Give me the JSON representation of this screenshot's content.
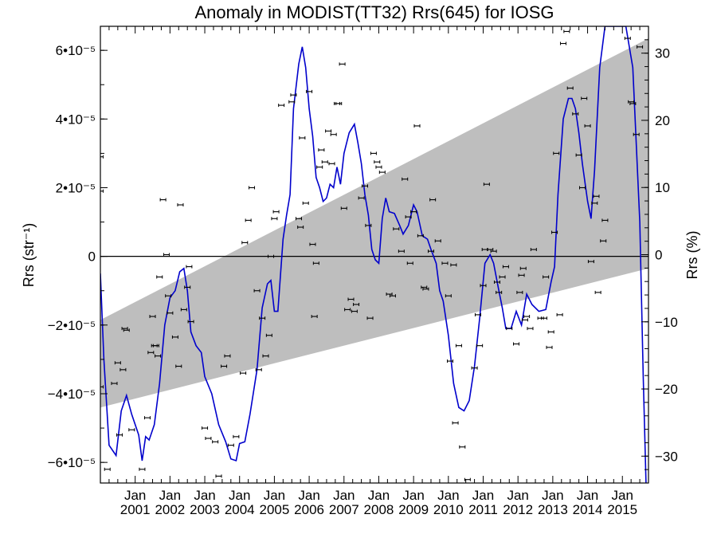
{
  "chart_data": {
    "type": "line",
    "title": "Anomaly in MODIST(TT32) Rrs(645) for IOSG",
    "ylabel_left": "Rrs (str⁻¹)",
    "ylabel_right": "Rrs (%)",
    "xlim": [
      2000.0,
      2015.75
    ],
    "ylim": [
      -6.6e-05,
      6.7e-05
    ],
    "ylim_right": [
      -34,
      34
    ],
    "zero_line": true,
    "y_ticks": [
      {
        "value": -6e-05,
        "label": "−6•10⁻⁵"
      },
      {
        "value": -4e-05,
        "label": "−4•10⁻⁵"
      },
      {
        "value": -2e-05,
        "label": "−2•10⁻⁵"
      },
      {
        "value": 0,
        "label": "0"
      },
      {
        "value": 2e-05,
        "label": "2•10⁻⁵"
      },
      {
        "value": 4e-05,
        "label": "4•10⁻⁵"
      },
      {
        "value": 6e-05,
        "label": "6•10⁻⁵"
      }
    ],
    "y_ticks_right": [
      {
        "value": -30,
        "label": "−30"
      },
      {
        "value": -20,
        "label": "−20"
      },
      {
        "value": -10,
        "label": "−10"
      },
      {
        "value": 0,
        "label": "0"
      },
      {
        "value": 10,
        "label": "10"
      },
      {
        "value": 20,
        "label": "20"
      },
      {
        "value": 30,
        "label": "30"
      }
    ],
    "x_ticks": [
      {
        "value": 2001,
        "month": "Jan",
        "year": "2001"
      },
      {
        "value": 2002,
        "month": "Jan",
        "year": "2002"
      },
      {
        "value": 2003,
        "month": "Jan",
        "year": "2003"
      },
      {
        "value": 2004,
        "month": "Jan",
        "year": "2004"
      },
      {
        "value": 2005,
        "month": "Jan",
        "year": "2005"
      },
      {
        "value": 2006,
        "month": "Jan",
        "year": "2006"
      },
      {
        "value": 2007,
        "month": "Jan",
        "year": "2007"
      },
      {
        "value": 2008,
        "month": "Jan",
        "year": "2008"
      },
      {
        "value": 2009,
        "month": "Jan",
        "year": "2009"
      },
      {
        "value": 2010,
        "month": "Jan",
        "year": "2010"
      },
      {
        "value": 2011,
        "month": "Jan",
        "year": "2011"
      },
      {
        "value": 2012,
        "month": "Jan",
        "year": "2012"
      },
      {
        "value": 2013,
        "month": "Jan",
        "year": "2013"
      },
      {
        "value": 2014,
        "month": "Jan",
        "year": "2014"
      },
      {
        "value": 2015,
        "month": "Jan",
        "year": "2015"
      }
    ],
    "band": {
      "color": "#bebebe",
      "lower": [
        [
          2000.0,
          -4.4e-05
        ],
        [
          2015.75,
          -3.5e-06
        ]
      ],
      "upper": [
        [
          2000.0,
          -1.85e-05
        ],
        [
          2015.75,
          6.35e-05
        ]
      ]
    },
    "series": [
      {
        "color": "#0000cc",
        "values": [
          [
            2000.0,
            -5e-06
          ],
          [
            2000.1,
            -3e-05
          ],
          [
            2000.25,
            -5.5e-05
          ],
          [
            2000.45,
            -5.8e-05
          ],
          [
            2000.6,
            -4.5e-05
          ],
          [
            2000.75,
            -4.05e-05
          ],
          [
            2000.9,
            -4.6e-05
          ],
          [
            2001.1,
            -5.2e-05
          ],
          [
            2001.2,
            -5.95e-05
          ],
          [
            2001.3,
            -5.25e-05
          ],
          [
            2001.4,
            -5.35e-05
          ],
          [
            2001.55,
            -4.9e-05
          ],
          [
            2001.7,
            -3.7e-05
          ],
          [
            2001.85,
            -2e-05
          ],
          [
            2002.0,
            -1.2e-05
          ],
          [
            2002.15,
            -1e-05
          ],
          [
            2002.28,
            -4.5e-06
          ],
          [
            2002.4,
            -3.5e-06
          ],
          [
            2002.5,
            -1e-05
          ],
          [
            2002.6,
            -2.2e-05
          ],
          [
            2002.75,
            -2.6e-05
          ],
          [
            2002.9,
            -2.8e-05
          ],
          [
            2003.0,
            -3.5e-05
          ],
          [
            2003.2,
            -4e-05
          ],
          [
            2003.4,
            -4.9e-05
          ],
          [
            2003.6,
            -5.4e-05
          ],
          [
            2003.75,
            -5.9e-05
          ],
          [
            2003.9,
            -5.95e-05
          ],
          [
            2004.0,
            -5.45e-05
          ],
          [
            2004.15,
            -5.4e-05
          ],
          [
            2004.3,
            -4.6e-05
          ],
          [
            2004.5,
            -3.3e-05
          ],
          [
            2004.65,
            -1.5e-05
          ],
          [
            2004.8,
            -8e-06
          ],
          [
            2004.9,
            -7e-06
          ],
          [
            2005.0,
            -1.6e-05
          ],
          [
            2005.1,
            -1.6e-05
          ],
          [
            2005.25,
            5e-06
          ],
          [
            2005.35,
            1.2e-05
          ],
          [
            2005.45,
            1.8e-05
          ],
          [
            2005.55,
            4.3e-05
          ],
          [
            2005.7,
            5.6e-05
          ],
          [
            2005.8,
            6.1e-05
          ],
          [
            2005.9,
            5.5e-05
          ],
          [
            2006.0,
            4.3e-05
          ],
          [
            2006.1,
            3.5e-05
          ],
          [
            2006.2,
            2.3e-05
          ],
          [
            2006.3,
            2e-05
          ],
          [
            2006.4,
            1.6e-05
          ],
          [
            2006.5,
            1.7e-05
          ],
          [
            2006.6,
            2.1e-05
          ],
          [
            2006.7,
            2e-05
          ],
          [
            2006.8,
            2.6e-05
          ],
          [
            2006.9,
            2.1e-05
          ],
          [
            2007.0,
            3e-05
          ],
          [
            2007.15,
            3.6e-05
          ],
          [
            2007.3,
            3.85e-05
          ],
          [
            2007.4,
            3.3e-05
          ],
          [
            2007.5,
            2.7e-05
          ],
          [
            2007.6,
            1.8e-05
          ],
          [
            2007.7,
            1.2e-05
          ],
          [
            2007.8,
            2e-06
          ],
          [
            2007.9,
            -1e-06
          ],
          [
            2008.0,
            -2e-06
          ],
          [
            2008.1,
            1.1e-05
          ],
          [
            2008.2,
            1.7e-05
          ],
          [
            2008.3,
            1.3e-05
          ],
          [
            2008.45,
            1.25e-05
          ],
          [
            2008.6,
            9e-06
          ],
          [
            2008.7,
            6.5e-06
          ],
          [
            2008.85,
            9e-06
          ],
          [
            2009.0,
            1.5e-05
          ],
          [
            2009.1,
            1.3e-05
          ],
          [
            2009.25,
            6e-06
          ],
          [
            2009.4,
            5e-06
          ],
          [
            2009.5,
            2e-06
          ],
          [
            2009.65,
            -2e-06
          ],
          [
            2009.75,
            -1e-05
          ],
          [
            2009.85,
            -1.3e-05
          ],
          [
            2010.0,
            -2.3e-05
          ],
          [
            2010.15,
            -3.7e-05
          ],
          [
            2010.3,
            -4.4e-05
          ],
          [
            2010.45,
            -4.5e-05
          ],
          [
            2010.6,
            -4.2e-05
          ],
          [
            2010.75,
            -3.2e-05
          ],
          [
            2010.9,
            -1.8e-05
          ],
          [
            2011.05,
            -2e-06
          ],
          [
            2011.2,
            5e-07
          ],
          [
            2011.3,
            -2e-06
          ],
          [
            2011.45,
            -1e-05
          ],
          [
            2011.55,
            -1.5e-05
          ],
          [
            2011.65,
            -2.1e-05
          ],
          [
            2011.8,
            -2.1e-05
          ],
          [
            2011.95,
            -1.6e-05
          ],
          [
            2012.1,
            -2e-05
          ],
          [
            2012.25,
            -1.1e-05
          ],
          [
            2012.4,
            -1.4e-05
          ],
          [
            2012.6,
            -1.6e-05
          ],
          [
            2012.8,
            -1.55e-05
          ],
          [
            2012.95,
            -7.5e-06
          ],
          [
            2013.05,
            -3e-06
          ],
          [
            2013.15,
            1.8e-05
          ],
          [
            2013.3,
            4e-05
          ],
          [
            2013.45,
            4.6e-05
          ],
          [
            2013.55,
            4.6e-05
          ],
          [
            2013.65,
            4.3e-05
          ],
          [
            2013.75,
            3.6e-05
          ],
          [
            2013.85,
            2.7e-05
          ],
          [
            2014.0,
            1.6e-05
          ],
          [
            2014.1,
            1.1e-05
          ],
          [
            2014.2,
            2.5e-05
          ],
          [
            2014.35,
            5.5e-05
          ],
          [
            2014.5,
            6.7e-05
          ],
          [
            2015.1,
            6.7e-05
          ],
          [
            2015.3,
            5.5e-05
          ],
          [
            2015.5,
            1e-05
          ],
          [
            2015.6,
            -3.5e-05
          ],
          [
            2015.68,
            -6.6e-05
          ]
        ]
      }
    ],
    "points": [
      [
        2000.0,
        2.9e-05
      ],
      [
        2000.0,
        1.9e-05
      ],
      [
        2000.0,
        -3.8e-05
      ],
      [
        2000.2,
        -6.2e-05
      ],
      [
        2000.4,
        -3.7e-05
      ],
      [
        2000.5,
        -3.1e-05
      ],
      [
        2000.55,
        -5.2e-05
      ],
      [
        2000.65,
        -3.3e-05
      ],
      [
        2000.7,
        -2.1e-05
      ],
      [
        2000.75,
        -2.15e-05
      ],
      [
        2000.9,
        -5.05e-05
      ],
      [
        2001.2,
        -6.2e-05
      ],
      [
        2001.35,
        -4.7e-05
      ],
      [
        2001.45,
        -2.8e-05
      ],
      [
        2001.5,
        -1.75e-05
      ],
      [
        2001.55,
        -2.6e-05
      ],
      [
        2001.6,
        -2.6e-05
      ],
      [
        2001.65,
        -2.9e-05
      ],
      [
        2001.7,
        -6e-06
      ],
      [
        2001.8,
        1.65e-05
      ],
      [
        2001.9,
        5e-07
      ],
      [
        2001.95,
        -1.15e-05
      ],
      [
        2002.0,
        -1.65e-05
      ],
      [
        2002.15,
        -2.35e-05
      ],
      [
        2002.25,
        -3.2e-05
      ],
      [
        2002.3,
        1.5e-05
      ],
      [
        2002.4,
        -1.55e-05
      ],
      [
        2002.5,
        -9e-06
      ],
      [
        2002.55,
        -3e-06
      ],
      [
        2002.6,
        -1.9e-05
      ],
      [
        2003.0,
        -5e-05
      ],
      [
        2003.1,
        -5.3e-05
      ],
      [
        2003.3,
        -5.4e-05
      ],
      [
        2003.4,
        -6.4e-05
      ],
      [
        2003.55,
        -3.2e-05
      ],
      [
        2003.65,
        -2.9e-05
      ],
      [
        2003.75,
        -5.5e-05
      ],
      [
        2003.9,
        -5.25e-05
      ],
      [
        2004.1,
        -3.4e-05
      ],
      [
        2004.15,
        4e-06
      ],
      [
        2004.25,
        1.05e-05
      ],
      [
        2004.35,
        2e-05
      ],
      [
        2004.5,
        -1e-05
      ],
      [
        2004.55,
        -3.3e-05
      ],
      [
        2004.65,
        -1.8e-05
      ],
      [
        2004.75,
        -2.9e-05
      ],
      [
        2004.85,
        -2.3e-05
      ],
      [
        2004.9,
        0.0
      ],
      [
        2005.0,
        1.1e-05
      ],
      [
        2005.05,
        1.3e-05
      ],
      [
        2005.2,
        4.4e-05
      ],
      [
        2005.5,
        4.5e-05
      ],
      [
        2005.55,
        4.7e-05
      ],
      [
        2005.7,
        1.1e-05
      ],
      [
        2005.75,
        8.5e-06
      ],
      [
        2005.8,
        3.45e-05
      ],
      [
        2005.9,
        1.55e-05
      ],
      [
        2006.0,
        4.8e-05
      ],
      [
        2006.1,
        3.5e-06
      ],
      [
        2006.15,
        -1.75e-05
      ],
      [
        2006.2,
        -2e-06
      ],
      [
        2006.3,
        2.6e-05
      ],
      [
        2006.35,
        3.1e-05
      ],
      [
        2006.45,
        2.75e-05
      ],
      [
        2006.55,
        3.65e-05
      ],
      [
        2006.65,
        2.7e-05
      ],
      [
        2006.7,
        3.55e-05
      ],
      [
        2006.8,
        4.45e-05
      ],
      [
        2006.85,
        4.45e-05
      ],
      [
        2006.95,
        5.6e-05
      ],
      [
        2007.0,
        1.4e-05
      ],
      [
        2007.1,
        -1.55e-05
      ],
      [
        2007.2,
        -1.25e-05
      ],
      [
        2007.3,
        -1.6e-05
      ],
      [
        2007.35,
        -1.4e-05
      ],
      [
        2007.5,
        1.7e-05
      ],
      [
        2007.6,
        2.05e-05
      ],
      [
        2007.7,
        9e-06
      ],
      [
        2007.75,
        -1.8e-05
      ],
      [
        2007.85,
        3e-05
      ],
      [
        2007.95,
        2.75e-05
      ],
      [
        2008.0,
        2.6e-05
      ],
      [
        2008.1,
        2.45e-05
      ],
      [
        2008.3,
        -1.1e-05
      ],
      [
        2008.4,
        -1.15e-05
      ],
      [
        2008.5,
        8e-06
      ],
      [
        2008.65,
        1.5e-06
      ],
      [
        2008.75,
        2.25e-05
      ],
      [
        2008.85,
        1.15e-05
      ],
      [
        2008.9,
        -2e-06
      ],
      [
        2009.0,
        1.3e-05
      ],
      [
        2009.1,
        3.8e-05
      ],
      [
        2009.2,
        6e-06
      ],
      [
        2009.3,
        -9e-06
      ],
      [
        2009.35,
        -9.5e-06
      ],
      [
        2009.5,
        1.5e-06
      ],
      [
        2009.55,
        1.65e-05
      ],
      [
        2009.7,
        4.5e-06
      ],
      [
        2009.9,
        -2e-06
      ],
      [
        2010.0,
        -1.15e-05
      ],
      [
        2010.05,
        -3.05e-05
      ],
      [
        2010.15,
        -2.5e-06
      ],
      [
        2010.2,
        -4.85e-05
      ],
      [
        2010.3,
        -2.6e-05
      ],
      [
        2010.4,
        -5.55e-05
      ],
      [
        2010.55,
        -6.5e-05
      ],
      [
        2010.75,
        -3.25e-05
      ],
      [
        2010.85,
        -1.7e-05
      ],
      [
        2010.9,
        -2.6e-05
      ],
      [
        2011.0,
        -8.5e-06
      ],
      [
        2011.05,
        2e-06
      ],
      [
        2011.1,
        2.1e-05
      ],
      [
        2011.2,
        2e-06
      ],
      [
        2011.3,
        1.5e-06
      ],
      [
        2011.4,
        -7.5e-06
      ],
      [
        2011.45,
        -1.05e-05
      ],
      [
        2011.55,
        -6e-06
      ],
      [
        2011.65,
        -3e-06
      ],
      [
        2011.75,
        -2.1e-05
      ],
      [
        2011.95,
        -2.55e-05
      ],
      [
        2012.05,
        -1.05e-05
      ],
      [
        2012.1,
        -5.5e-06
      ],
      [
        2012.15,
        -3.5e-06
      ],
      [
        2012.2,
        -1.85e-05
      ],
      [
        2012.25,
        -1.75e-05
      ],
      [
        2012.35,
        -2.1e-05
      ],
      [
        2012.45,
        2e-06
      ],
      [
        2012.65,
        -1.8e-05
      ],
      [
        2012.75,
        -1.8e-05
      ],
      [
        2012.8,
        -6e-06
      ],
      [
        2012.9,
        -2.65e-05
      ],
      [
        2012.95,
        -2.2e-05
      ],
      [
        2013.05,
        7e-06
      ],
      [
        2013.1,
        3e-05
      ],
      [
        2013.2,
        -1.7e-05
      ],
      [
        2013.3,
        6.2e-05
      ],
      [
        2013.4,
        6.55e-05
      ],
      [
        2013.5,
        4.9e-05
      ],
      [
        2013.65,
        4.15e-05
      ],
      [
        2013.75,
        2.95e-05
      ],
      [
        2013.85,
        2e-05
      ],
      [
        2013.9,
        4.6e-05
      ],
      [
        2014.0,
        3.8e-05
      ],
      [
        2014.1,
        -1.5e-06
      ],
      [
        2014.2,
        1.55e-05
      ],
      [
        2014.25,
        1.75e-05
      ],
      [
        2014.3,
        -1.05e-05
      ],
      [
        2014.45,
        4.5e-06
      ],
      [
        2014.5,
        1.05e-05
      ],
      [
        2015.15,
        6.35e-05
      ],
      [
        2015.25,
        4.5e-05
      ],
      [
        2015.3,
        4.45e-05
      ],
      [
        2015.4,
        3.55e-05
      ],
      [
        2015.5,
        6.1e-05
      ]
    ]
  }
}
